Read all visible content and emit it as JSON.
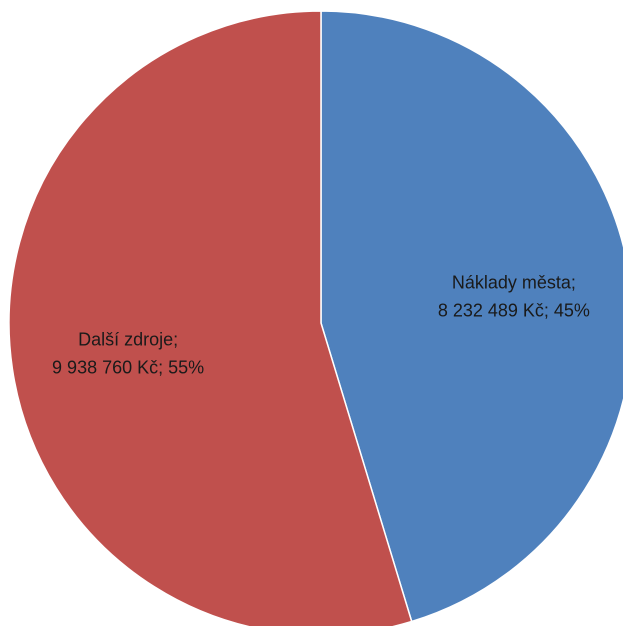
{
  "chart_data": {
    "type": "pie",
    "title": "",
    "slices": [
      {
        "name": "Náklady města",
        "value": 8232489,
        "value_label": "8 232 489 Kč",
        "percent": 45,
        "percent_label": "45%",
        "color": "#4f81bd"
      },
      {
        "name": "Další zdroje",
        "value": 9938760,
        "value_label": "9 938 760 Kč",
        "percent": 55,
        "percent_label": "55%",
        "color": "#c0504d"
      }
    ],
    "start_angle": "12 o'clock",
    "direction": "clockwise",
    "legend": "none"
  }
}
